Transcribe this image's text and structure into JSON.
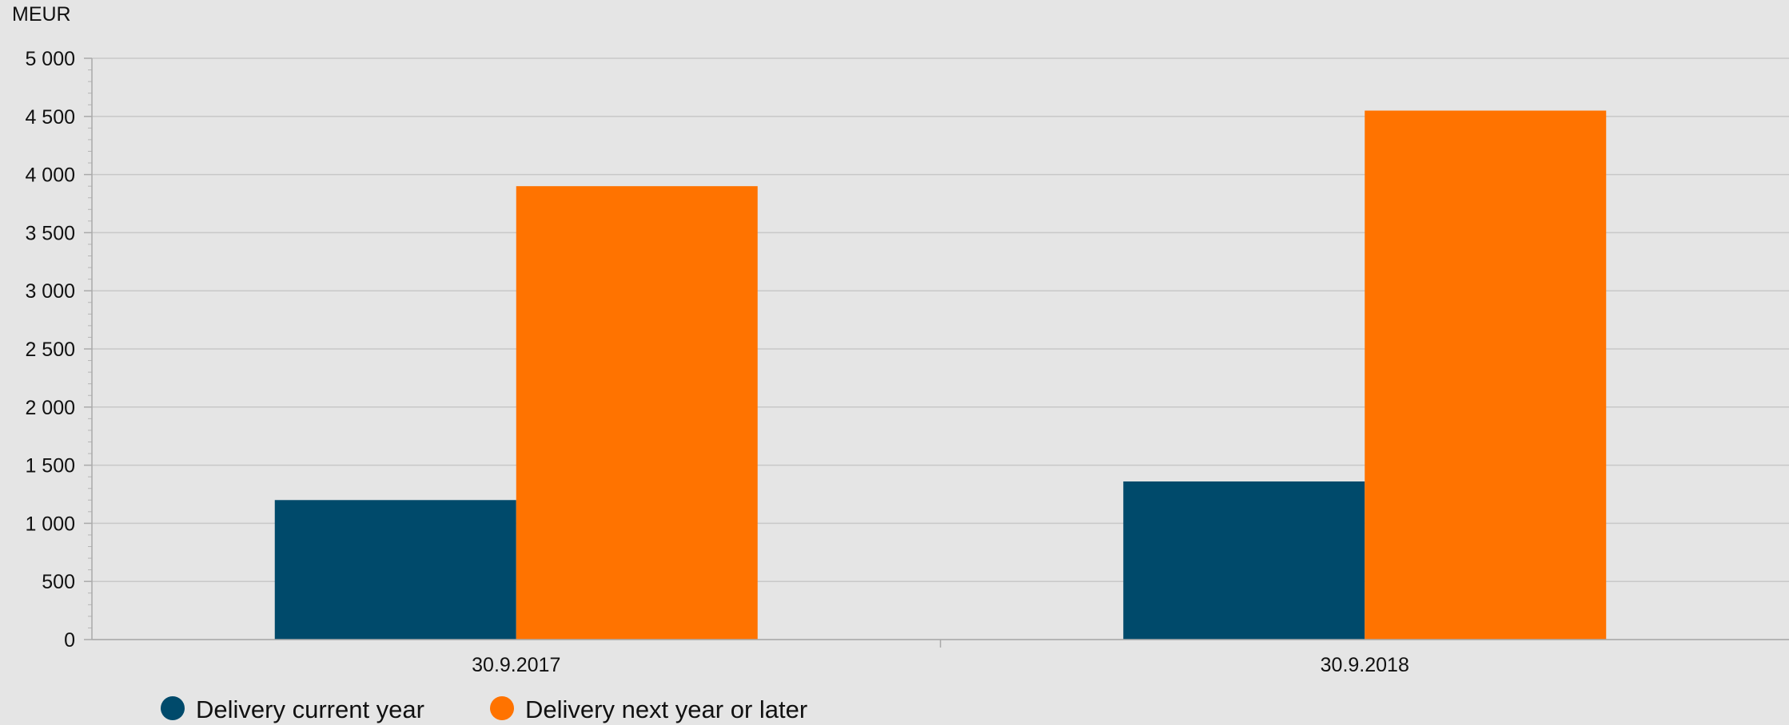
{
  "chart_data": {
    "type": "bar",
    "ylabel": "MEUR",
    "categories": [
      "30.9.2017",
      "30.9.2018"
    ],
    "series": [
      {
        "name": "Delivery current year",
        "values": [
          1200,
          1360
        ],
        "color": "#004a6b"
      },
      {
        "name": "Delivery next year or later",
        "values": [
          3900,
          4550
        ],
        "color": "#ff7300"
      }
    ],
    "ylim": [
      0,
      5000
    ],
    "yticks": [
      0,
      500,
      1000,
      1500,
      2000,
      2500,
      3000,
      3500,
      4000,
      4500,
      5000
    ],
    "ytick_labels": [
      "0",
      "500",
      "1 000",
      "1 500",
      "2 000",
      "2 500",
      "3 000",
      "3 500",
      "4 000",
      "4 500",
      "5 000"
    ],
    "grid": true,
    "legend_position": "bottom-left",
    "background": "#e5e5e5",
    "grid_color": "#c8c8c8"
  }
}
